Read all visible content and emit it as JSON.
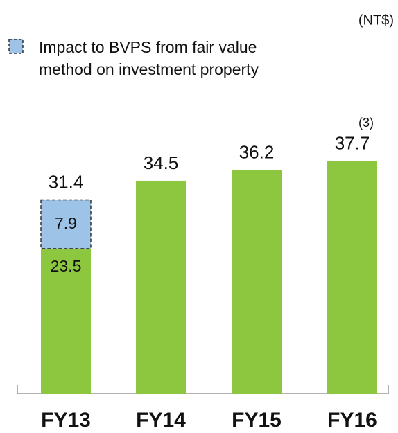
{
  "chart_data": {
    "type": "stacked_bar",
    "unit_label": "(NT$)",
    "categories": [
      "FY13",
      "FY14",
      "FY15",
      "FY16"
    ],
    "series": [
      {
        "color": "#8dc63f",
        "values": [
          23.5,
          34.5,
          36.2,
          37.7
        ]
      },
      {
        "name": "Impact to BVPS from fair value method on investment property",
        "color": "#9dc3e6",
        "dashed": true,
        "values": [
          7.9,
          null,
          null,
          null
        ]
      }
    ],
    "totals": [
      31.4,
      34.5,
      36.2,
      37.7
    ],
    "annotation": "(3)",
    "ylim": [
      0,
      40
    ]
  }
}
